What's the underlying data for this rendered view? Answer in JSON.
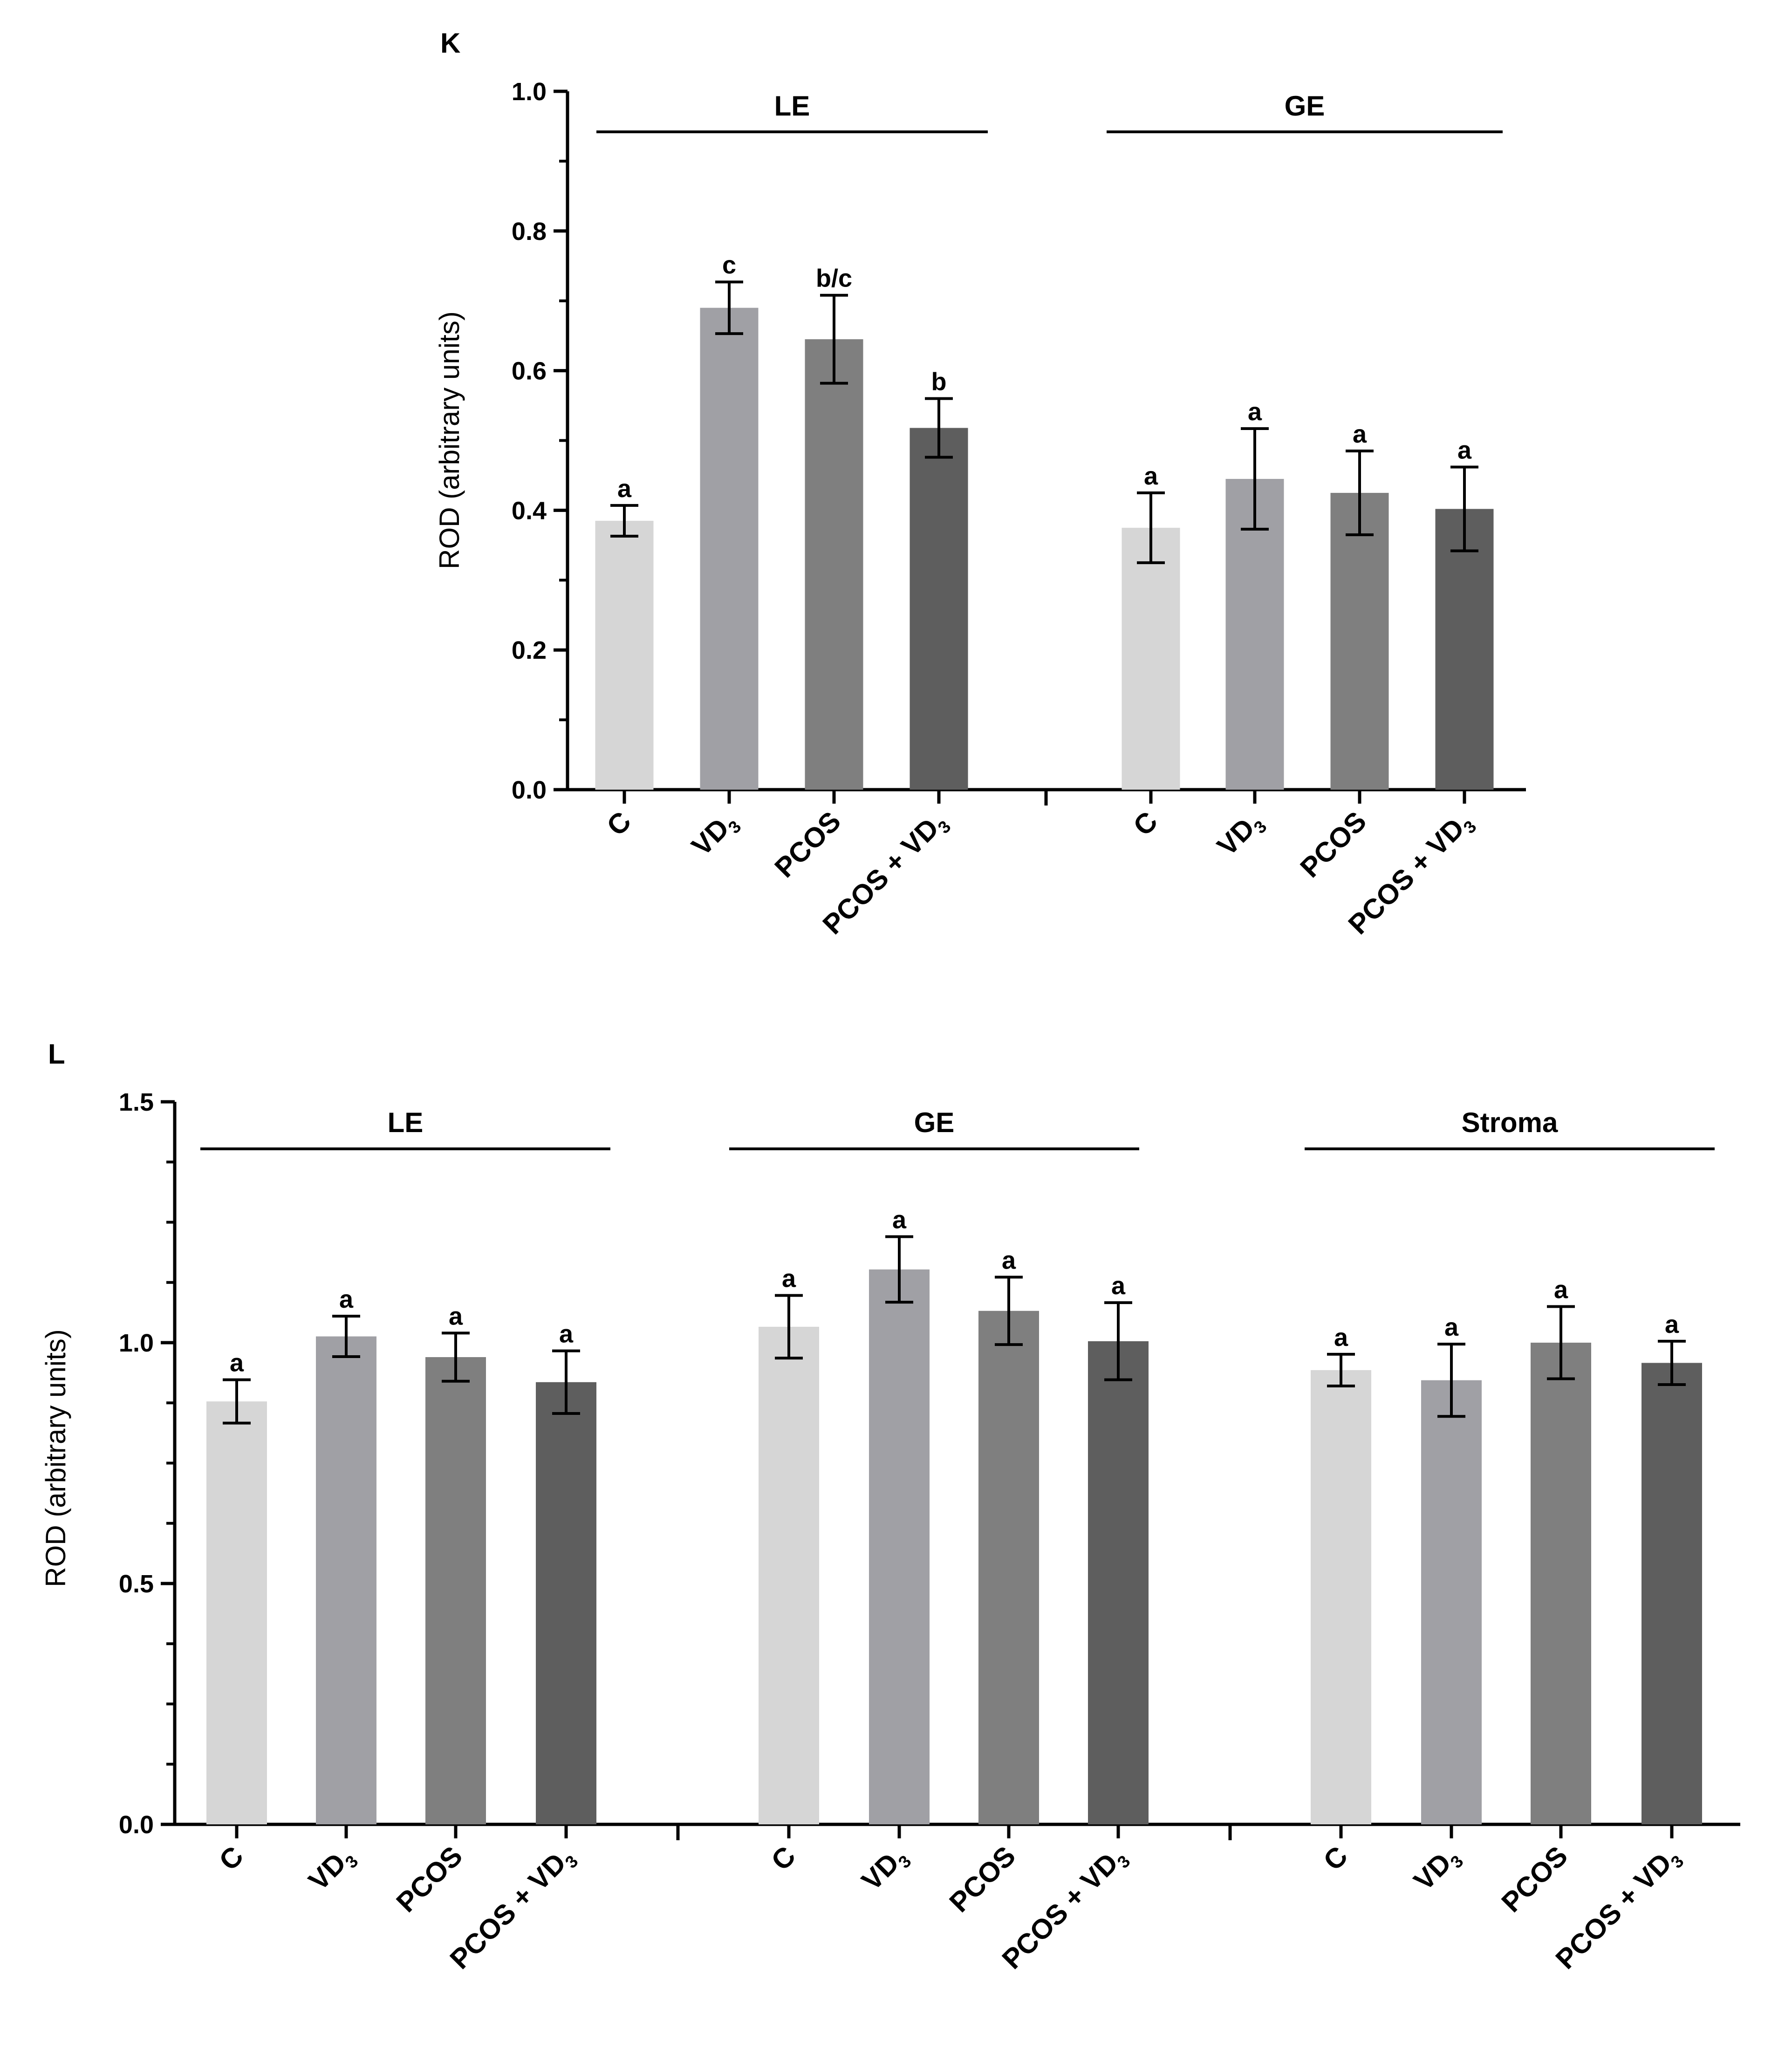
{
  "colors": {
    "C": "#d6d6d6",
    "VD3": "#a0a0a5",
    "PCOS": "#7f7f7f",
    "PCOS_VD3": "#5e5e5e",
    "axis": "#000000"
  },
  "chart_data": [
    {
      "type": "bar",
      "panel_label": "K",
      "ylabel": "ROD (arbitrary units)",
      "ylim": [
        0,
        1.0
      ],
      "yticks": [
        "0.0",
        "0.2",
        "0.4",
        "0.6",
        "0.8",
        "1.0"
      ],
      "groups": [
        {
          "name": "LE",
          "bars": [
            {
              "category": "C",
              "sub": "",
              "value": 0.385,
              "error": 0.022,
              "letter": "a"
            },
            {
              "category": "VD",
              "sub": "3",
              "value": 0.69,
              "error": 0.037,
              "letter": "c"
            },
            {
              "category": "PCOS",
              "sub": "",
              "value": 0.645,
              "error": 0.063,
              "letter": "b/c"
            },
            {
              "category": "PCOS + VD",
              "sub": "3",
              "value": 0.518,
              "error": 0.042,
              "letter": "b"
            }
          ]
        },
        {
          "name": "GE",
          "bars": [
            {
              "category": "C",
              "sub": "",
              "value": 0.375,
              "error": 0.05,
              "letter": "a"
            },
            {
              "category": "VD",
              "sub": "3",
              "value": 0.445,
              "error": 0.072,
              "letter": "a"
            },
            {
              "category": "PCOS",
              "sub": "",
              "value": 0.425,
              "error": 0.06,
              "letter": "a"
            },
            {
              "category": "PCOS + VD",
              "sub": "3",
              "value": 0.402,
              "error": 0.06,
              "letter": "a"
            }
          ]
        }
      ]
    },
    {
      "type": "bar",
      "panel_label": "L",
      "ylabel": "ROD (arbitrary units)",
      "ylim": [
        0,
        1.5
      ],
      "yticks": [
        "0.0",
        "0.5",
        "1.0",
        "1.5"
      ],
      "groups": [
        {
          "name": "LE",
          "bars": [
            {
              "category": "C",
              "sub": "",
              "value": 0.878,
              "error": 0.045,
              "letter": "a"
            },
            {
              "category": "VD",
              "sub": "3",
              "value": 1.013,
              "error": 0.042,
              "letter": "a"
            },
            {
              "category": "PCOS",
              "sub": "",
              "value": 0.97,
              "error": 0.05,
              "letter": "a"
            },
            {
              "category": "PCOS + VD",
              "sub": "3",
              "value": 0.918,
              "error": 0.065,
              "letter": "a"
            }
          ]
        },
        {
          "name": "GE",
          "bars": [
            {
              "category": "C",
              "sub": "",
              "value": 1.033,
              "error": 0.065,
              "letter": "a"
            },
            {
              "category": "VD",
              "sub": "3",
              "value": 1.152,
              "error": 0.068,
              "letter": "a"
            },
            {
              "category": "PCOS",
              "sub": "",
              "value": 1.066,
              "error": 0.07,
              "letter": "a"
            },
            {
              "category": "PCOS + VD",
              "sub": "3",
              "value": 1.003,
              "error": 0.08,
              "letter": "a"
            }
          ]
        },
        {
          "name": "Stroma",
          "bars": [
            {
              "category": "C",
              "sub": "",
              "value": 0.943,
              "error": 0.033,
              "letter": "a"
            },
            {
              "category": "VD",
              "sub": "3",
              "value": 0.922,
              "error": 0.075,
              "letter": "a"
            },
            {
              "category": "PCOS",
              "sub": "",
              "value": 1.0,
              "error": 0.075,
              "letter": "a"
            },
            {
              "category": "PCOS + VD",
              "sub": "3",
              "value": 0.958,
              "error": 0.045,
              "letter": "a"
            }
          ]
        }
      ]
    }
  ]
}
